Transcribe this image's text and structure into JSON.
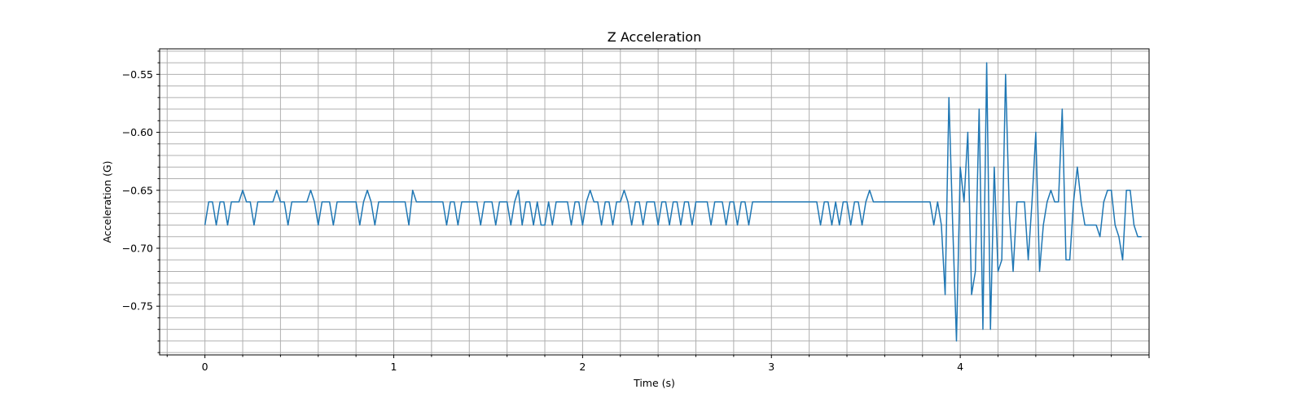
{
  "chart_data": {
    "type": "line",
    "title": "Z Acceleration",
    "xlabel": "Time (s)",
    "ylabel": "Acceleration (G)",
    "xlim": [
      -0.24,
      5.0
    ],
    "ylim": [
      -0.792,
      -0.528
    ],
    "x_major_ticks": [
      0,
      1,
      2,
      3,
      4
    ],
    "x_tick_labels": [
      "0",
      "1",
      "2",
      "3",
      "4"
    ],
    "x_minor_step": 0.2,
    "y_major_ticks": [
      -0.55,
      -0.6,
      -0.65,
      -0.7,
      -0.75
    ],
    "y_tick_labels": [
      "−0.55",
      "−0.60",
      "−0.65",
      "−0.70",
      "−0.75"
    ],
    "y_minor_step": 0.01,
    "grid": true,
    "line_color": "#1f77b4",
    "x_start": 0,
    "x_step": 0.02,
    "series": [
      {
        "values": [
          -0.68,
          -0.66,
          -0.66,
          -0.68,
          -0.66,
          -0.66,
          -0.68,
          -0.66,
          -0.66,
          -0.66,
          -0.65,
          -0.66,
          -0.66,
          -0.68,
          -0.66,
          -0.66,
          -0.66,
          -0.66,
          -0.66,
          -0.65,
          -0.66,
          -0.66,
          -0.68,
          -0.66,
          -0.66,
          -0.66,
          -0.66,
          -0.66,
          -0.65,
          -0.66,
          -0.68,
          -0.66,
          -0.66,
          -0.66,
          -0.68,
          -0.66,
          -0.66,
          -0.66,
          -0.66,
          -0.66,
          -0.66,
          -0.68,
          -0.66,
          -0.65,
          -0.66,
          -0.68,
          -0.66,
          -0.66,
          -0.66,
          -0.66,
          -0.66,
          -0.66,
          -0.66,
          -0.66,
          -0.68,
          -0.65,
          -0.66,
          -0.66,
          -0.66,
          -0.66,
          -0.66,
          -0.66,
          -0.66,
          -0.66,
          -0.68,
          -0.66,
          -0.66,
          -0.68,
          -0.66,
          -0.66,
          -0.66,
          -0.66,
          -0.66,
          -0.68,
          -0.66,
          -0.66,
          -0.66,
          -0.68,
          -0.66,
          -0.66,
          -0.66,
          -0.68,
          -0.66,
          -0.65,
          -0.68,
          -0.66,
          -0.66,
          -0.68,
          -0.66,
          -0.68,
          -0.68,
          -0.66,
          -0.68,
          -0.66,
          -0.66,
          -0.66,
          -0.66,
          -0.68,
          -0.66,
          -0.66,
          -0.68,
          -0.66,
          -0.65,
          -0.66,
          -0.66,
          -0.68,
          -0.66,
          -0.66,
          -0.68,
          -0.66,
          -0.66,
          -0.65,
          -0.66,
          -0.68,
          -0.66,
          -0.66,
          -0.68,
          -0.66,
          -0.66,
          -0.66,
          -0.68,
          -0.66,
          -0.66,
          -0.68,
          -0.66,
          -0.66,
          -0.68,
          -0.66,
          -0.66,
          -0.68,
          -0.66,
          -0.66,
          -0.66,
          -0.66,
          -0.68,
          -0.66,
          -0.66,
          -0.66,
          -0.68,
          -0.66,
          -0.66,
          -0.68,
          -0.66,
          -0.66,
          -0.68,
          -0.66,
          -0.66,
          -0.66,
          -0.66,
          -0.66,
          -0.66,
          -0.66,
          -0.66,
          -0.66,
          -0.66,
          -0.66,
          -0.66,
          -0.66,
          -0.66,
          -0.66,
          -0.66,
          -0.66,
          -0.66,
          -0.68,
          -0.66,
          -0.66,
          -0.68,
          -0.66,
          -0.68,
          -0.66,
          -0.66,
          -0.68,
          -0.66,
          -0.66,
          -0.68,
          -0.66,
          -0.65,
          -0.66,
          -0.66,
          -0.66,
          -0.66,
          -0.66,
          -0.66,
          -0.66,
          -0.66,
          -0.66,
          -0.66,
          -0.66,
          -0.66,
          -0.66,
          -0.66,
          -0.66,
          -0.66,
          -0.68,
          -0.66,
          -0.68,
          -0.74,
          -0.57,
          -0.68,
          -0.78,
          -0.63,
          -0.66,
          -0.6,
          -0.74,
          -0.72,
          -0.58,
          -0.77,
          -0.54,
          -0.77,
          -0.63,
          -0.72,
          -0.71,
          -0.55,
          -0.67,
          -0.72,
          -0.66,
          -0.66,
          -0.66,
          -0.71,
          -0.66,
          -0.6,
          -0.72,
          -0.68,
          -0.66,
          -0.65,
          -0.66,
          -0.66,
          -0.58,
          -0.71,
          -0.71,
          -0.66,
          -0.63,
          -0.66,
          -0.68,
          -0.68,
          -0.68,
          -0.68,
          -0.69,
          -0.66,
          -0.65,
          -0.65,
          -0.68,
          -0.69,
          -0.71,
          -0.65,
          -0.65,
          -0.68,
          -0.69,
          -0.69
        ]
      }
    ]
  }
}
